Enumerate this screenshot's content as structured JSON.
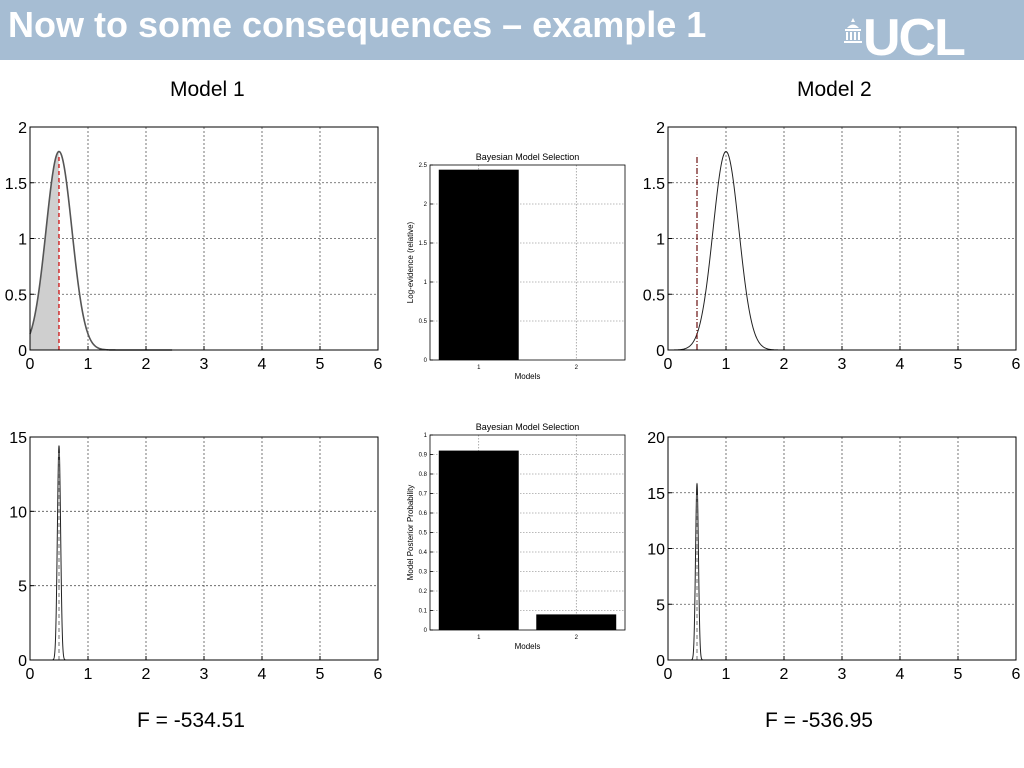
{
  "slide": {
    "title": "Now to some consequences – example 1",
    "logo_text": "UCL",
    "header_color": "#a6bdd3"
  },
  "models": [
    {
      "label": "Model 1",
      "free_energy": "F = -534.51"
    },
    {
      "label": "Model 2",
      "free_energy": "F = -536.95"
    }
  ],
  "chart_data": [
    {
      "id": "model1-prior",
      "type": "line",
      "title": "",
      "xlabel": "",
      "ylabel": "",
      "xlim": [
        0,
        6
      ],
      "ylim": [
        0,
        2
      ],
      "xticks": [
        0,
        1,
        2,
        3,
        4,
        5,
        6
      ],
      "yticks": [
        0,
        0.5,
        1,
        1.5,
        2
      ],
      "ytick_labels": [
        "0",
        "0.5",
        "1",
        "1.5",
        "2"
      ],
      "grid": true,
      "curve": {
        "kind": "gaussian",
        "mean": 0.5,
        "sd": 0.223,
        "peak": 1.78,
        "x_end": 2.45,
        "filled": true
      },
      "marker_line": {
        "x": 0.5,
        "color": "#cc0000",
        "style": "dashed",
        "y_top": 1.75
      }
    },
    {
      "id": "model2-prior",
      "type": "line",
      "title": "",
      "xlabel": "",
      "ylabel": "",
      "xlim": [
        0,
        6
      ],
      "ylim": [
        0,
        2
      ],
      "xticks": [
        0,
        1,
        2,
        3,
        4,
        5,
        6
      ],
      "yticks": [
        0,
        0.5,
        1,
        1.5,
        2
      ],
      "ytick_labels": [
        "0",
        "0.5",
        "1",
        "1.5",
        "2"
      ],
      "grid": true,
      "curve": {
        "kind": "gaussian",
        "mean": 1.0,
        "sd": 0.223,
        "peak": 1.78,
        "x_end": 2.9,
        "filled": false
      },
      "marker_line": {
        "x": 0.5,
        "color": "#6b1010",
        "style": "dashdot",
        "y_top": 1.75
      }
    },
    {
      "id": "model1-posterior",
      "type": "line",
      "title": "",
      "xlabel": "",
      "ylabel": "",
      "xlim": [
        0,
        6
      ],
      "ylim": [
        0,
        15
      ],
      "xticks": [
        0,
        1,
        2,
        3,
        4,
        5,
        6
      ],
      "yticks": [
        0,
        5,
        10,
        15
      ],
      "ytick_labels": [
        "0",
        "5",
        "10",
        "15"
      ],
      "grid": true,
      "curve": {
        "kind": "gaussian",
        "mean": 0.5,
        "sd": 0.028,
        "peak": 14.4,
        "x_end": 0.7,
        "x_start": 0.35,
        "filled": false
      },
      "marker_line": {
        "x": 0.5,
        "color": "#888888",
        "style": "dashed",
        "y_top": 14
      }
    },
    {
      "id": "model2-posterior",
      "type": "line",
      "title": "",
      "xlabel": "",
      "ylabel": "",
      "xlim": [
        0,
        6
      ],
      "ylim": [
        0,
        20
      ],
      "xticks": [
        0,
        1,
        2,
        3,
        4,
        5,
        6
      ],
      "yticks": [
        0,
        5,
        10,
        15,
        20
      ],
      "ytick_labels": [
        "0",
        "5",
        "10",
        "15",
        "20"
      ],
      "grid": true,
      "curve": {
        "kind": "gaussian",
        "mean": 0.5,
        "sd": 0.025,
        "peak": 15.8,
        "x_end": 0.68,
        "x_start": 0.32,
        "filled": false
      },
      "marker_line": {
        "x": 0.5,
        "color": "#888888",
        "style": "dashed",
        "y_top": 15
      }
    },
    {
      "id": "log-evidence",
      "type": "bar",
      "title": "Bayesian Model Selection",
      "xlabel": "Models",
      "ylabel": "Log-evidence (relative)",
      "categories": [
        "1",
        "2"
      ],
      "values": [
        2.44,
        0
      ],
      "ylim": [
        0,
        2.5
      ],
      "yticks": [
        "0",
        "0.5",
        "1",
        "1.5",
        "2",
        "2.5"
      ],
      "grid": true
    },
    {
      "id": "posterior-probability",
      "type": "bar",
      "title": "Bayesian Model Selection",
      "xlabel": "Models",
      "ylabel": "Model Posterior Probability",
      "categories": [
        "1",
        "2"
      ],
      "values": [
        0.92,
        0.08
      ],
      "ylim": [
        0,
        1
      ],
      "yticks": [
        "0",
        "0.1",
        "0.2",
        "0.3",
        "0.4",
        "0.5",
        "0.6",
        "0.7",
        "0.8",
        "0.9",
        "1"
      ],
      "grid": true
    }
  ]
}
